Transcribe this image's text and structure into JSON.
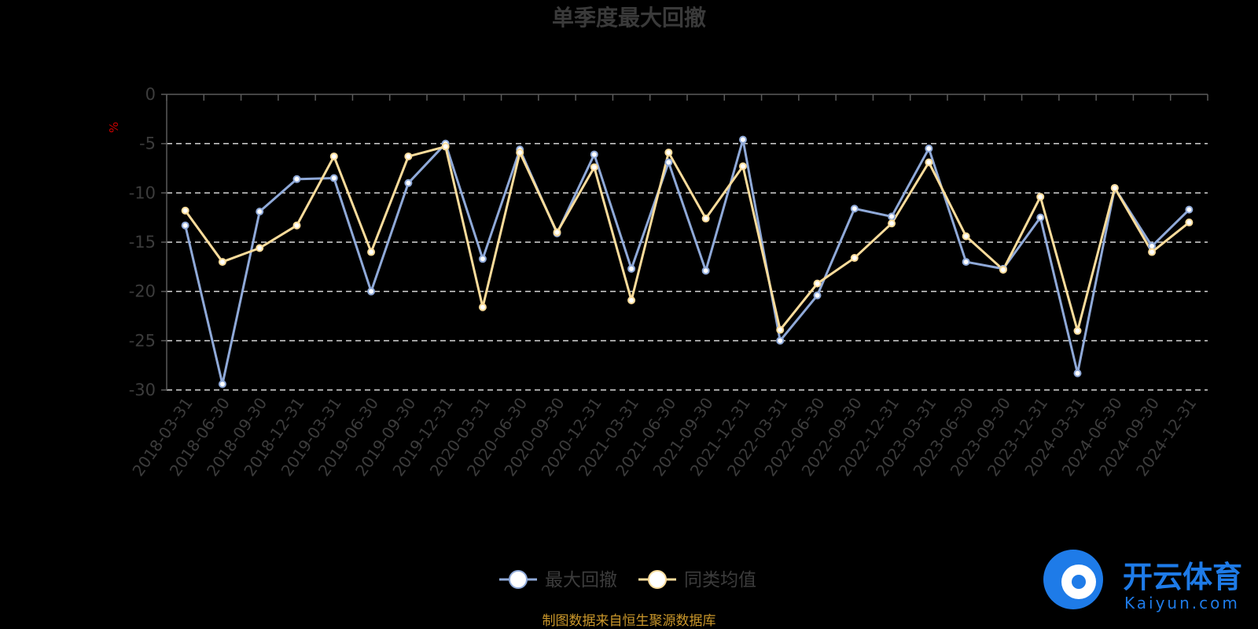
{
  "chart_data": {
    "type": "line",
    "title": "单季度最大回撤",
    "ylabel": "%",
    "ylim": [
      -30,
      0
    ],
    "yticks": [
      "0",
      "-5",
      "-10",
      "-15",
      "-20",
      "-25",
      "-30"
    ],
    "grid": "horizontal-dashed",
    "legend_position": "bottom-center",
    "categories": [
      "2018-03-31",
      "2018-06-30",
      "2018-09-30",
      "2018-12-31",
      "2019-03-31",
      "2019-06-30",
      "2019-09-30",
      "2019-12-31",
      "2020-03-31",
      "2020-06-30",
      "2020-09-30",
      "2020-12-31",
      "2021-03-31",
      "2021-06-30",
      "2021-09-30",
      "2021-12-31",
      "2022-03-31",
      "2022-06-30",
      "2022-09-30",
      "2022-12-31",
      "2023-03-31",
      "2023-06-30",
      "2023-09-30",
      "2023-12-31",
      "2024-03-31",
      "2024-06-30",
      "2024-09-30",
      "2024-12-31"
    ],
    "series": [
      {
        "name": "最大回撤",
        "color": "#8fa9d8",
        "values": [
          -13.3,
          -29.4,
          -11.9,
          -8.6,
          -8.5,
          -20.0,
          -9.0,
          -5.0,
          -16.7,
          -5.6,
          -14.1,
          -6.1,
          -17.7,
          -6.9,
          -17.9,
          -4.6,
          -25.0,
          -20.4,
          -11.6,
          -12.4,
          -5.5,
          -17.0,
          -17.7,
          -12.5,
          -28.3,
          -9.5,
          -15.4,
          -11.7
        ]
      },
      {
        "name": "同类均值",
        "color": "#fbdc9b",
        "values": [
          -11.8,
          -17.0,
          -15.6,
          -13.3,
          -6.3,
          -16.0,
          -6.3,
          -5.3,
          -21.6,
          -5.9,
          -14.0,
          -7.4,
          -20.9,
          -5.9,
          -12.6,
          -7.3,
          -23.9,
          -19.2,
          -16.6,
          -13.1,
          -6.9,
          -14.4,
          -17.8,
          -10.4,
          -24.0,
          -9.5,
          -16.0,
          -13.0
        ]
      }
    ],
    "source_note": "制图数据来自恒生聚源数据库"
  },
  "watermark": {
    "brand": "开云体育",
    "domain": "Kaiyun.com",
    "color": "#1e7be8"
  }
}
